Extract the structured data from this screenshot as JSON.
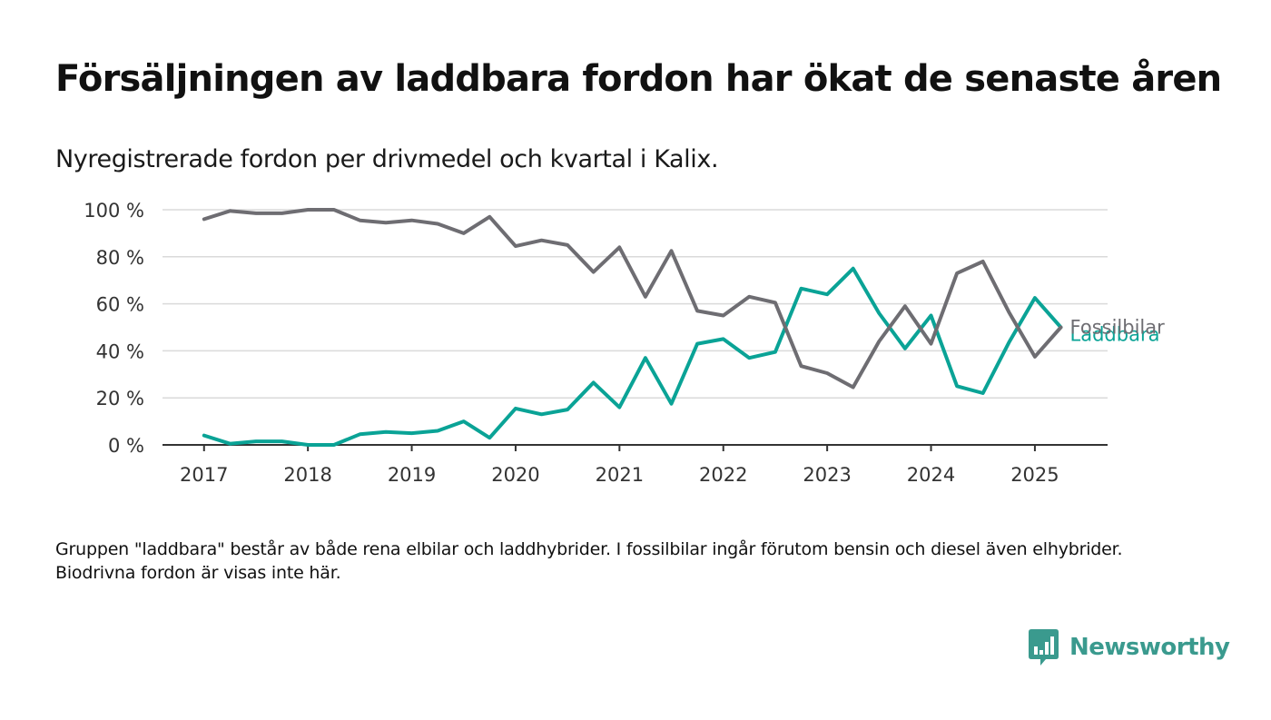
{
  "title": "Försäljningen av laddbara fordon har ökat de senaste åren",
  "subtitle": "Nyregistrerade fordon per drivmedel och kvartal i Kalix.",
  "footnote": "Gruppen \"laddbara\" består av både rena elbilar och laddhybrider. I fossilbilar ingår förutom bensin och diesel även elhybrider. Biodrivna fordon är visas inte här.",
  "brand": {
    "name": "Newsworthy",
    "icon": "newsworthy-logo-icon",
    "color": "#3a9a8e"
  },
  "chart_data": {
    "type": "line",
    "y_ticks": [
      0,
      20,
      40,
      60,
      80,
      100
    ],
    "y_tick_suffix": " %",
    "ylim": [
      0,
      100
    ],
    "x_ticks": [
      2017,
      2018,
      2019,
      2020,
      2021,
      2022,
      2023,
      2024,
      2025
    ],
    "xlim": [
      2016.6,
      2025.7
    ],
    "x": [
      2017,
      2017.25,
      2017.5,
      2017.75,
      2018,
      2018.25,
      2018.5,
      2018.75,
      2019,
      2019.25,
      2019.5,
      2019.75,
      2020,
      2020.25,
      2020.5,
      2020.75,
      2021,
      2021.25,
      2021.5,
      2021.75,
      2022,
      2022.25,
      2022.5,
      2022.75,
      2023,
      2023.25,
      2023.5,
      2023.75,
      2024,
      2024.25,
      2024.5,
      2024.75,
      2025,
      2025.25
    ],
    "grid": true,
    "series": [
      {
        "name": "Fossilbilar",
        "color": "#6e6d72",
        "values": [
          96,
          99.5,
          98.5,
          98.5,
          100,
          100,
          95.5,
          94.5,
          95.5,
          94,
          90,
          97,
          84.5,
          87,
          85,
          73.5,
          84,
          63,
          82.5,
          57,
          55,
          63,
          60.5,
          33.5,
          30.5,
          24.5,
          44,
          59,
          43,
          73,
          78,
          56.5,
          37.5,
          50
        ]
      },
      {
        "name": "Laddbara",
        "color": "#0aa396",
        "values": [
          4,
          0.5,
          1.5,
          1.5,
          0,
          0,
          4.5,
          5.5,
          5,
          6,
          10,
          3,
          15.5,
          13,
          15,
          26.5,
          16,
          37,
          17.5,
          43,
          45,
          37,
          39.5,
          66.5,
          64,
          75,
          56,
          41,
          55,
          25,
          22,
          43.5,
          62.5,
          50
        ]
      }
    ]
  }
}
